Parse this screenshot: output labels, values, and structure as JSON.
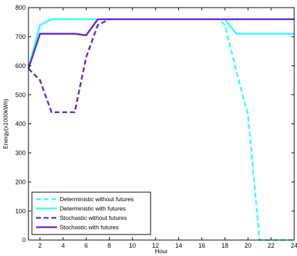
{
  "chart_data": {
    "type": "line",
    "title": "",
    "xlabel": "Hour",
    "ylabel": "Energy(x1000kWh)",
    "xlim": [
      1,
      24
    ],
    "ylim": [
      0,
      800
    ],
    "xticks": [
      2,
      4,
      6,
      8,
      10,
      12,
      14,
      16,
      18,
      20,
      22,
      24
    ],
    "yticks": [
      0,
      100,
      200,
      300,
      400,
      500,
      600,
      700,
      800
    ],
    "grid": false,
    "legend_position": "bottom-left",
    "series": [
      {
        "name": "Deterministic without futures",
        "color": "#33ffff",
        "dash": "dashed",
        "x": [
          1,
          2,
          3,
          4,
          5,
          6,
          7,
          8,
          9,
          10,
          11,
          12,
          13,
          14,
          15,
          16,
          17,
          17.5,
          18,
          19,
          20,
          21,
          22,
          23,
          24
        ],
        "values": [
          590,
          740,
          760,
          760,
          760,
          760,
          760,
          760,
          760,
          760,
          760,
          760,
          760,
          760,
          760,
          760,
          760,
          760,
          740,
          580,
          430,
          0,
          0,
          0,
          0
        ]
      },
      {
        "name": "Deterministic with futures",
        "color": "#33ffff",
        "dash": "solid",
        "x": [
          1,
          2,
          3,
          4,
          5,
          6,
          7,
          8,
          9,
          10,
          11,
          12,
          13,
          14,
          15,
          16,
          17,
          18,
          19,
          20,
          21,
          22,
          23,
          24
        ],
        "values": [
          590,
          740,
          760,
          760,
          760,
          760,
          760,
          760,
          760,
          760,
          760,
          760,
          760,
          760,
          760,
          760,
          760,
          760,
          710,
          710,
          710,
          710,
          710,
          710
        ]
      },
      {
        "name": "Stochastic without futures",
        "color": "#6a2ad4",
        "dash": "dashed",
        "x": [
          1,
          2,
          3,
          4,
          5,
          6,
          7,
          8,
          9,
          10,
          11,
          12,
          13,
          14,
          15,
          16,
          17,
          18,
          19,
          20,
          21,
          22,
          23,
          24
        ],
        "values": [
          590,
          550,
          440,
          440,
          440,
          630,
          740,
          760,
          760,
          760,
          760,
          760,
          760,
          760,
          760,
          760,
          760,
          760,
          760,
          760,
          760,
          760,
          760,
          760
        ]
      },
      {
        "name": "Stochastic with futures",
        "color": "#6a2ad4",
        "dash": "solid",
        "x": [
          1,
          2,
          3,
          4,
          5,
          6,
          7,
          8,
          9,
          10,
          11,
          12,
          13,
          14,
          15,
          16,
          17,
          18,
          19,
          20,
          21,
          22,
          23,
          24
        ],
        "values": [
          590,
          710,
          710,
          710,
          710,
          705,
          760,
          760,
          760,
          760,
          760,
          760,
          760,
          760,
          760,
          760,
          760,
          760,
          760,
          760,
          760,
          760,
          760,
          760
        ]
      }
    ]
  }
}
